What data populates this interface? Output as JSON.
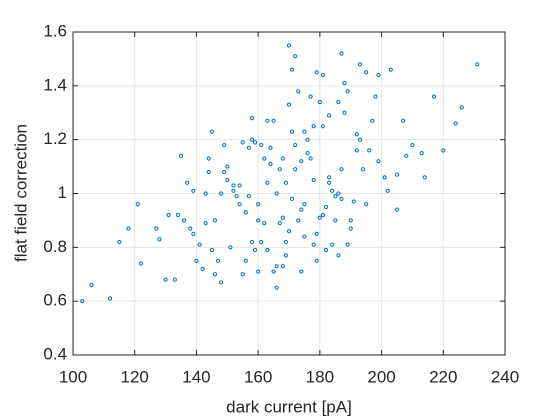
{
  "chart_data": {
    "type": "scatter",
    "xlabel": "dark current [pA]",
    "ylabel": "flat field correction",
    "xlim": [
      100,
      240
    ],
    "ylim": [
      0.4,
      1.6
    ],
    "xticks": [
      100,
      120,
      140,
      160,
      180,
      200,
      220,
      240
    ],
    "yticks": [
      0.4,
      0.6,
      0.8,
      1,
      1.2,
      1.4,
      1.6
    ],
    "grid": true,
    "color": "#0072bd",
    "x": [
      152,
      168,
      175,
      181,
      143,
      190,
      162,
      171,
      158,
      185,
      199,
      134,
      166,
      177,
      149,
      188,
      173,
      160,
      145,
      182,
      170,
      156,
      193,
      164,
      179,
      139,
      186,
      151,
      174,
      167,
      205,
      128,
      159,
      183,
      172,
      147,
      195,
      163,
      178,
      154,
      188,
      141,
      169,
      180,
      157,
      201,
      136,
      165,
      176,
      150,
      184,
      161,
      192,
      146,
      173,
      208,
      131,
      155,
      187,
      169,
      178,
      144,
      197,
      162,
      181,
      153,
      170,
      189,
      138,
      175,
      166,
      213,
      122,
      158,
      184,
      148,
      171,
      194,
      163,
      179,
      112,
      217,
      142,
      186,
      157,
      174,
      203,
      133,
      168,
      191,
      150,
      177,
      160,
      196,
      145,
      182,
      167,
      224,
      118,
      172,
      185,
      154,
      164,
      199,
      140,
      176,
      189,
      159,
      171,
      183,
      106,
      231,
      127,
      210,
      148,
      165,
      192,
      137,
      180,
      156,
      174,
      187,
      161,
      202,
      143,
      169,
      195,
      152,
      178,
      166,
      121,
      220,
      135,
      207,
      158,
      181,
      146,
      190,
      163,
      175,
      103,
      214,
      130,
      198,
      155,
      172,
      186,
      149,
      168,
      183,
      115,
      226,
      139,
      205,
      160,
      179,
      144,
      193,
      170,
      187
    ],
    "values": [
      1.01,
      0.91,
      1.23,
      0.92,
      0.89,
      0.9,
      1.13,
      0.98,
      1.2,
      0.99,
      1.12,
      0.92,
      0.73,
      1.13,
      1.08,
      1.41,
      0.9,
      0.96,
      0.79,
      0.79,
      1.33,
      0.75,
      1.2,
      1.11,
      0.85,
      0.85,
      1.34,
      0.8,
      0.71,
      1.09,
      1.07,
      0.83,
      1.19,
      1.04,
      1.18,
      0.75,
      0.96,
      1.27,
      1.05,
      1.03,
      1.3,
      0.81,
      0.82,
      1.34,
      0.99,
      1.06,
      0.9,
      0.71,
      1.2,
      1.1,
      1.01,
      1.18,
      1.16,
      0.7,
      1.38,
      1.14,
      0.92,
      0.7,
      1.09,
      1.04,
      0.81,
      1.13,
      1.27,
      0.89,
      1.25,
      0.99,
      0.86,
      1.38,
      0.87,
      0.84,
      1.0,
      1.15,
      0.74,
      1.28,
      0.81,
      1.0,
      1.23,
      1.09,
      0.79,
      1.45,
      0.61,
      1.36,
      0.72,
      0.77,
      1.17,
      0.94,
      1.46,
      0.68,
      1.13,
      0.97,
      1.05,
      1.36,
      0.71,
      1.16,
      1.23,
      0.95,
      0.89,
      1.26,
      0.87,
      1.09,
      0.9,
      0.96,
      1.17,
      1.44,
      0.75,
      1.15,
      0.81,
      0.79,
      1.46,
      1.06,
      0.66,
      1.48,
      0.87,
      1.18,
      0.67,
      1.27,
      1.22,
      1.04,
      0.91,
      0.93,
      1.12,
      1.52,
      0.82,
      1.01,
      1.0,
      0.77,
      1.45,
      1.03,
      1.25,
      0.65,
      0.96,
      1.16,
      1.14,
      1.27,
      0.82,
      1.44,
      0.9,
      0.87,
      1.04,
      0.96,
      0.6,
      1.06,
      0.68,
      1.36,
      1.19,
      1.51,
      1.0,
      1.18,
      0.73,
      1.29,
      0.82,
      1.32,
      1.01,
      0.94,
      0.9,
      0.75,
      1.08,
      1.48,
      1.55,
      0.98
    ]
  }
}
